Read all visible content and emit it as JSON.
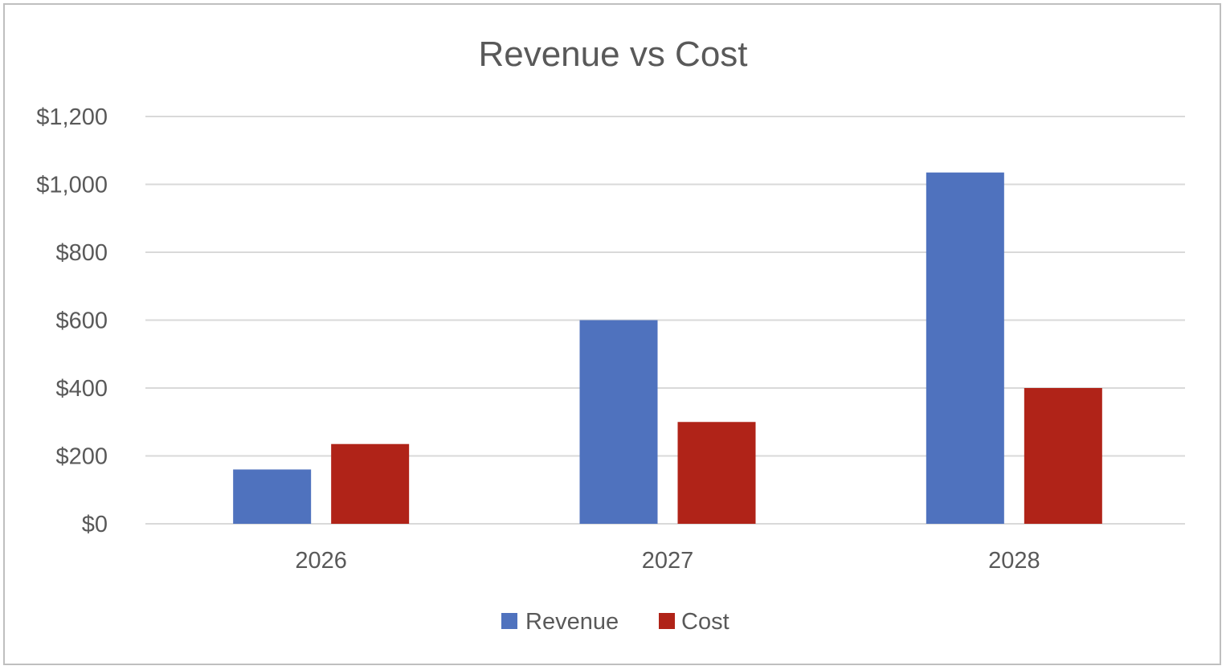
{
  "chart_data": {
    "type": "bar",
    "title": "Revenue vs Cost",
    "categories": [
      "2026",
      "2027",
      "2028"
    ],
    "series": [
      {
        "name": "Revenue",
        "color": "#4f72be",
        "values": [
          160,
          600,
          1035
        ]
      },
      {
        "name": "Cost",
        "color": "#b02318",
        "values": [
          235,
          300,
          400
        ]
      }
    ],
    "xlabel": "",
    "ylabel": "",
    "ylim": [
      0,
      1200
    ],
    "y_ticks": [
      {
        "value": 0,
        "label": "$0"
      },
      {
        "value": 200,
        "label": "$200"
      },
      {
        "value": 400,
        "label": "$400"
      },
      {
        "value": 600,
        "label": "$600"
      },
      {
        "value": 800,
        "label": "$800"
      },
      {
        "value": 1000,
        "label": "$1,000"
      },
      {
        "value": 1200,
        "label": "$1,200"
      }
    ],
    "grid": true,
    "legend_position": "bottom"
  }
}
